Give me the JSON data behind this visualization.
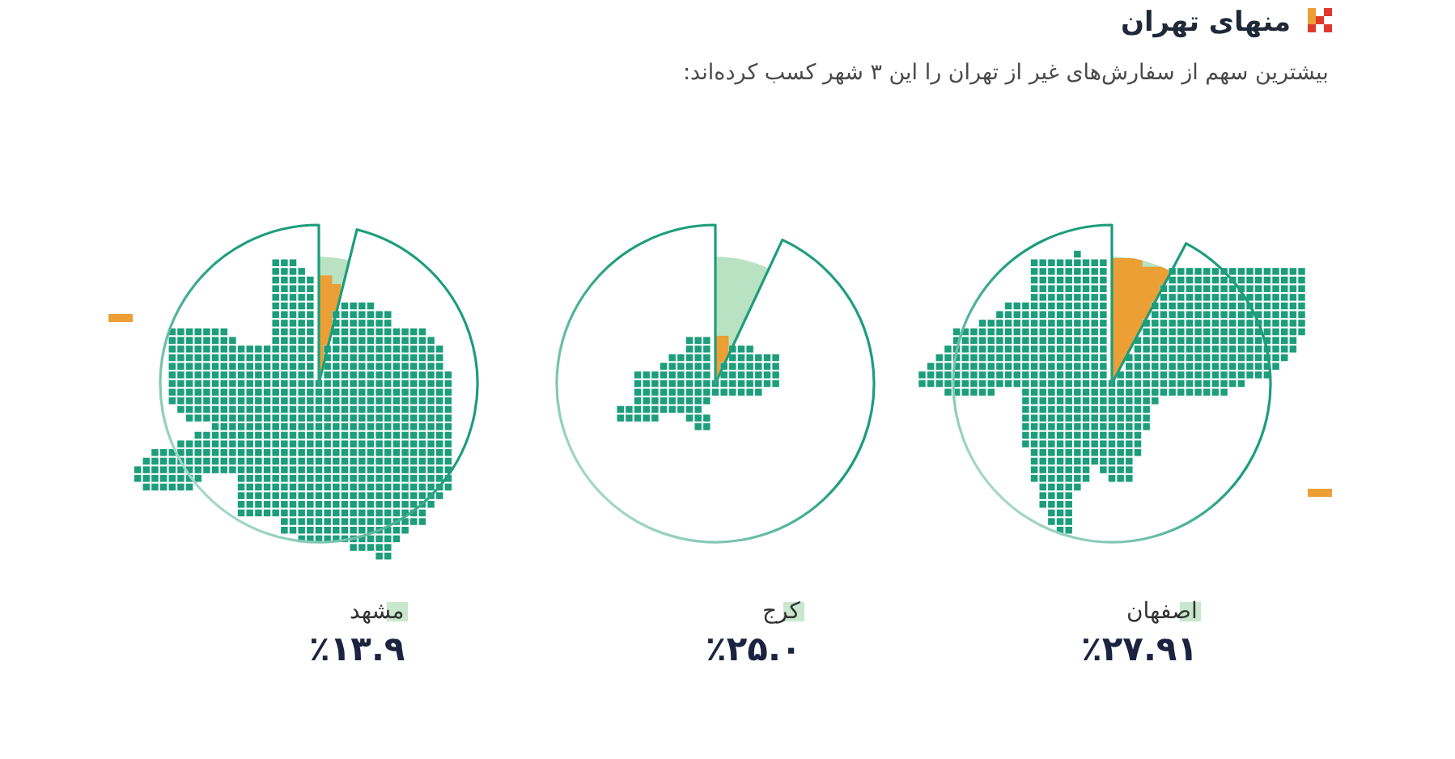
{
  "chart_data": {
    "type": "other",
    "title": "منهای تهران",
    "subtitle": "بیشترین سهم از سفارش‌های غیر از تهران را این ۳ شهر کسب کرده‌اند:",
    "categories": [
      "مشهد",
      "کرج",
      "اصفهان"
    ],
    "values": [
      13.9,
      25.0,
      27.91
    ],
    "value_labels": [
      "٪۱۳.۹",
      "٪۲۵.۰",
      "٪۲۷.۹۱"
    ],
    "color": "#b9e2c3"
  }
}
